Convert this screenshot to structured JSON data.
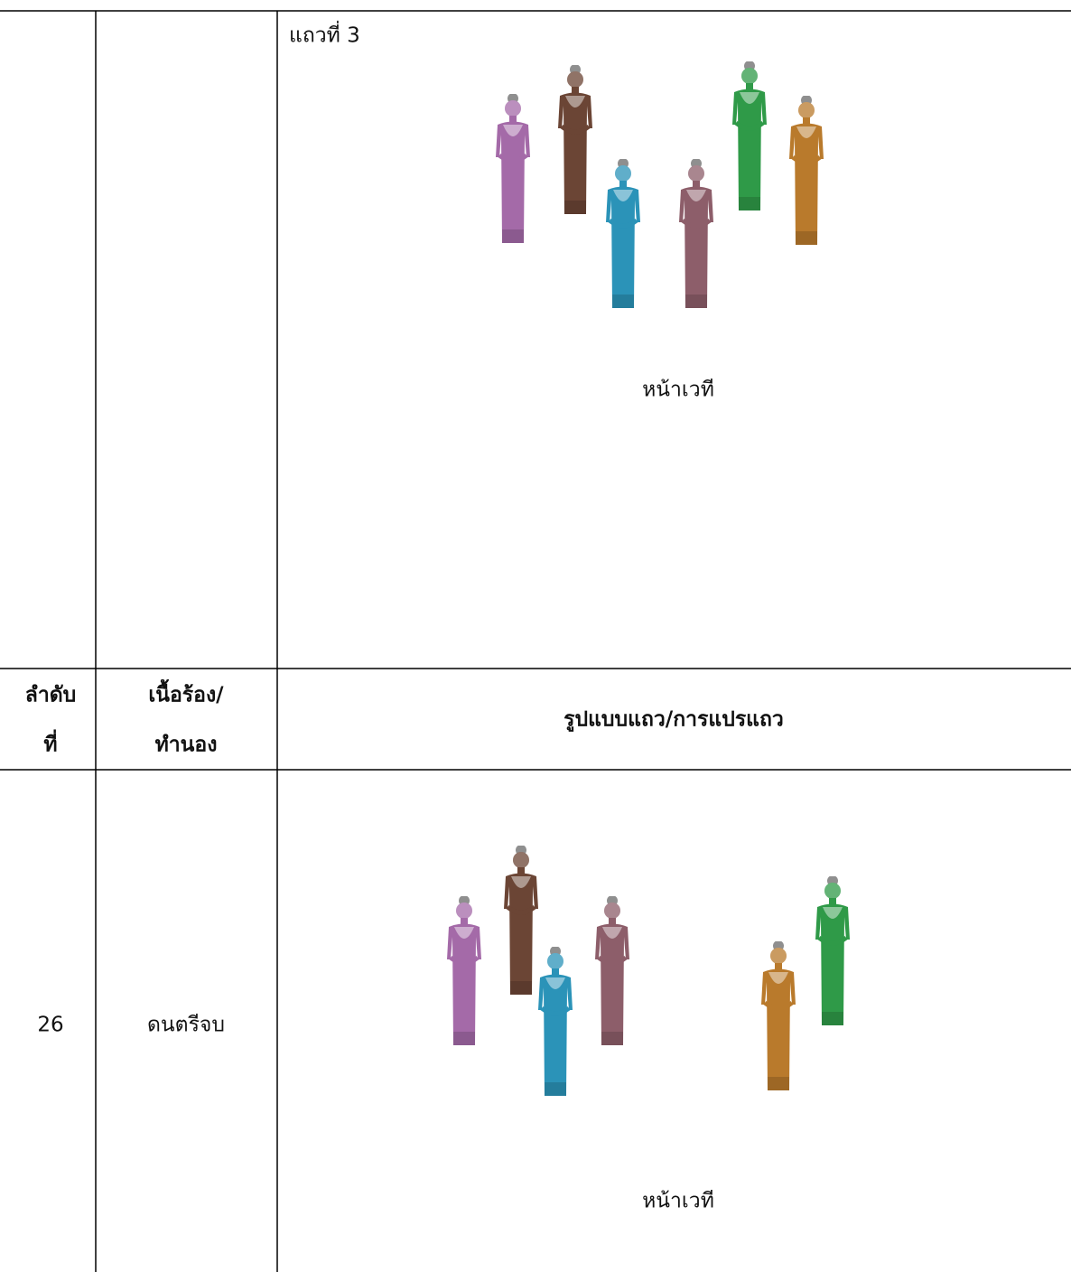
{
  "table": {
    "rows": [
      {
        "formation": {
          "label": "แถวที่ 3",
          "stage": "หน้าเวที"
        }
      },
      {
        "header": {
          "order": [
            "ลำดับ",
            "ที่"
          ],
          "lyrics": [
            "เนื้อร้อง/",
            "ทำนอง"
          ],
          "formation": "รูปแบบแถว/การแปรแถว"
        }
      },
      {
        "order": 26,
        "lyrics": "ดนตรีจบ",
        "formation": {
          "stage": "หน้าเวที"
        }
      }
    ]
  }
}
